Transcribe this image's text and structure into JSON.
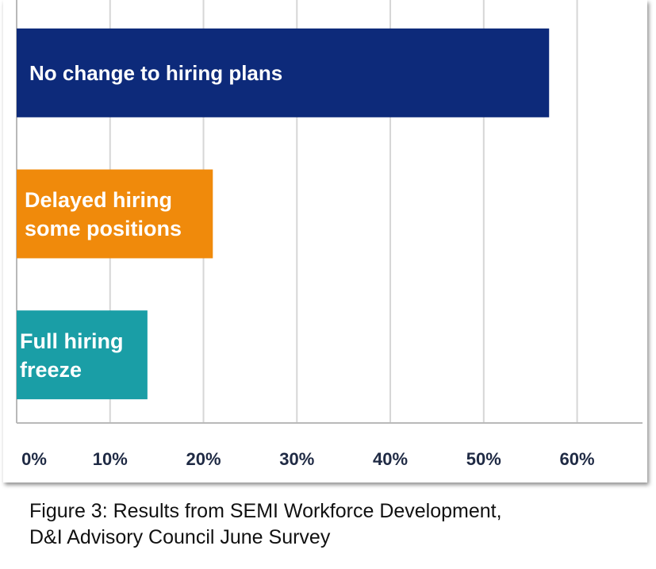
{
  "chart_data": {
    "type": "bar",
    "orientation": "horizontal",
    "categories": [
      [
        "No change to hiring plans"
      ],
      [
        "Delayed hiring",
        "some positions"
      ],
      [
        "Full hiring",
        "freeze"
      ]
    ],
    "values": [
      57,
      21,
      14
    ],
    "colors": [
      "#0d2a7a",
      "#f08a0b",
      "#1a9ea6"
    ],
    "x_ticks": [
      "0%",
      "10%",
      "20%",
      "30%",
      "40%",
      "50%",
      "60%"
    ],
    "xlim": [
      0,
      67
    ],
    "grid": true,
    "legend": "none"
  },
  "caption": {
    "line1": "Figure 3: Results from SEMI Workforce Development,",
    "line2": "D&I Advisory Council June Survey"
  }
}
